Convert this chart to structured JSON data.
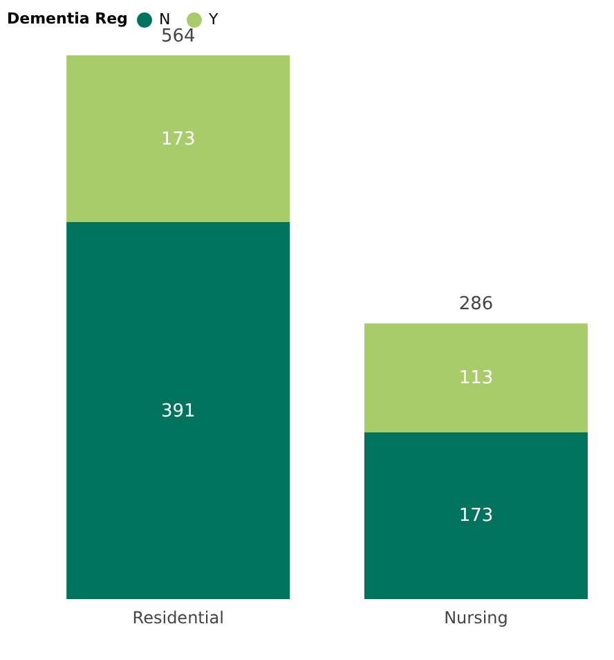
{
  "chart_data": {
    "type": "bar",
    "stacked": true,
    "legend_title": "Dementia Reg",
    "legend": "top left",
    "data_labels": true,
    "categories": [
      "Residential",
      "Nursing"
    ],
    "series": [
      {
        "name": "N",
        "color": "#00735e",
        "values": [
          391,
          173
        ]
      },
      {
        "name": "Y",
        "color": "#a8cc6a",
        "values": [
          173,
          113
        ]
      }
    ],
    "totals": [
      "564",
      "286"
    ],
    "grid": false
  }
}
